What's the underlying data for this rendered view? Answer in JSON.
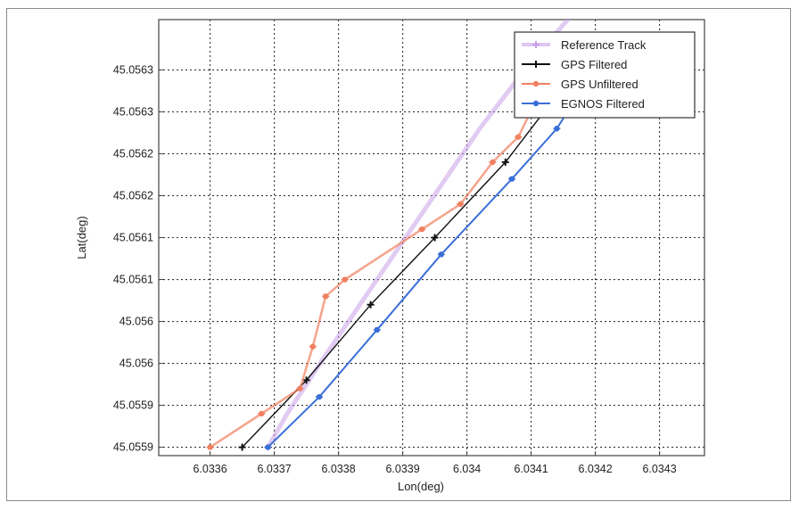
{
  "chart_data": {
    "type": "line",
    "xlabel": "Lon(deg)",
    "ylabel": "Lat(deg)",
    "xlim": [
      6.03352,
      6.03437
    ],
    "ylim": [
      45.05589,
      45.05641
    ],
    "grid": true,
    "legend_position": "top-right",
    "x_ticks": [
      6.0336,
      6.0337,
      6.0338,
      6.0339,
      6.034,
      6.0341,
      6.0342,
      6.0343
    ],
    "x_tick_labels": [
      "6.0336",
      "6.0337",
      "6.0338",
      "6.0339",
      "6.034",
      "6.0341",
      "6.0342",
      "6.0343"
    ],
    "y_ticks": [
      45.0559,
      45.05595,
      45.056,
      45.05605,
      45.0561,
      45.05615,
      45.0562,
      45.05625,
      45.0563,
      45.05635
    ],
    "y_tick_labels": [
      "45.0559",
      "45.0559",
      "45.056",
      "45.056",
      "45.0561",
      "45.0561",
      "45.0562",
      "45.0562",
      "45.0563",
      "45.0563"
    ],
    "series": [
      {
        "name": "Reference Track",
        "color": "#c8a0e8",
        "marker": "plus",
        "x": [
          6.03369,
          6.03372,
          6.03378,
          6.03386,
          6.03394,
          6.03402,
          6.0341,
          6.03418,
          6.03424
        ],
        "y": [
          45.0559,
          45.05594,
          45.05601,
          45.0561,
          45.05619,
          45.05628,
          45.05636,
          45.05643,
          45.05648
        ]
      },
      {
        "name": "GPS Filtered",
        "color": "#111111",
        "marker": "plus",
        "x": [
          6.03365,
          6.03375,
          6.03385,
          6.03395,
          6.03406,
          6.03413,
          6.03419
        ],
        "y": [
          45.0559,
          45.05598,
          45.05607,
          45.05615,
          45.05624,
          45.05631,
          45.05637
        ]
      },
      {
        "name": "GPS Unfiltered",
        "color": "#f08060",
        "marker": "star",
        "x": [
          6.0336,
          6.03368,
          6.03374,
          6.03376,
          6.03378,
          6.03381,
          6.03393,
          6.03399,
          6.03404,
          6.03408,
          6.03415
        ],
        "y": [
          45.0559,
          45.05594,
          45.05597,
          45.05602,
          45.05608,
          45.0561,
          45.05616,
          45.05619,
          45.05624,
          45.05627,
          45.05638
        ]
      },
      {
        "name": "EGNOS Filtered",
        "color": "#3a6fd8",
        "marker": "star",
        "x": [
          6.03369,
          6.03377,
          6.03386,
          6.03396,
          6.03407,
          6.03414,
          6.03419
        ],
        "y": [
          45.0559,
          45.05596,
          45.05604,
          45.05613,
          45.05622,
          45.05628,
          45.05634
        ]
      }
    ]
  }
}
